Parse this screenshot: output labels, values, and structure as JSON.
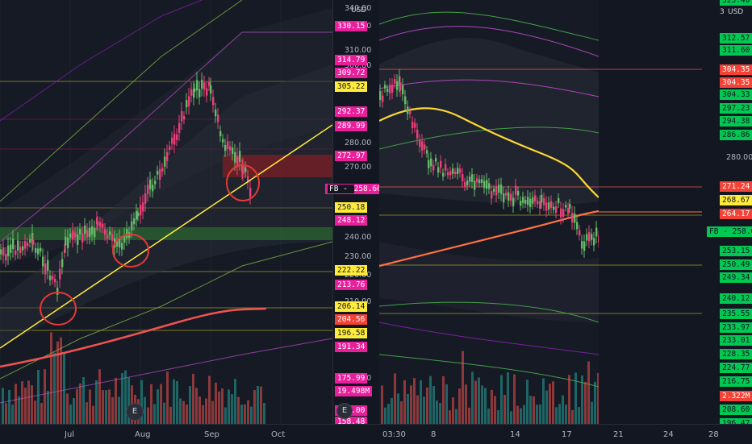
{
  "colors": {
    "background": "#131722",
    "yellow_line": "#ffeb3b",
    "red_circle": "#e53935",
    "magenta_tag": "#e91e9b",
    "yellow_tag": "#ffeb3b",
    "red_tag": "#f44336",
    "green_tag": "#00c853",
    "green_zone": "#2e7d32",
    "red_zone": "#b71c1c"
  },
  "left_chart": {
    "currency": "USD",
    "price_ticks": [
      "340.00",
      "320.00",
      "310.00",
      "300.00",
      "280.00",
      "270.00",
      "240.00",
      "230.00",
      "220.00",
      "210.00",
      "180.00"
    ],
    "tags": [
      {
        "label": "330.15",
        "kind": "magenta"
      },
      {
        "label": "314.79",
        "kind": "magenta"
      },
      {
        "label": "309.72",
        "kind": "magenta"
      },
      {
        "label": "305.22",
        "kind": "yellow"
      },
      {
        "label": "292.37",
        "kind": "magenta"
      },
      {
        "label": "289.99",
        "kind": "magenta"
      },
      {
        "label": "272.97",
        "kind": "magenta"
      },
      {
        "label": "258.60",
        "kind": "magenta",
        "symbol": "FB"
      },
      {
        "label": "250.18",
        "kind": "yellow"
      },
      {
        "label": "248.12",
        "kind": "magenta"
      },
      {
        "label": "222.22",
        "kind": "yellow"
      },
      {
        "label": "213.76",
        "kind": "magenta"
      },
      {
        "label": "206.14",
        "kind": "yellow"
      },
      {
        "label": "204.56",
        "kind": "red"
      },
      {
        "label": "196.58",
        "kind": "yellow"
      },
      {
        "label": "191.34",
        "kind": "magenta"
      },
      {
        "label": "175.99",
        "kind": "magenta"
      },
      {
        "label": "19.498M",
        "kind": "magenta"
      },
      {
        "label": "161.00",
        "kind": "magenta"
      },
      {
        "label": "158.48",
        "kind": "magenta"
      }
    ],
    "time_labels": [
      "Jul",
      "Aug",
      "Sep",
      "Oct"
    ],
    "events_button": "E"
  },
  "right_chart": {
    "currency": "USD",
    "price_ticks": [
      "280.00"
    ],
    "tags": [
      {
        "label": "323.40",
        "kind": "green"
      },
      {
        "label": "312.57",
        "kind": "green"
      },
      {
        "label": "311.60",
        "kind": "green"
      },
      {
        "label": "304.35",
        "kind": "red"
      },
      {
        "label": "304.35",
        "kind": "red"
      },
      {
        "label": "304.33",
        "kind": "green"
      },
      {
        "label": "297.23",
        "kind": "green"
      },
      {
        "label": "294.38",
        "kind": "green"
      },
      {
        "label": "286.86",
        "kind": "green"
      },
      {
        "label": "271.24",
        "kind": "red"
      },
      {
        "label": "268.67",
        "kind": "yellow"
      },
      {
        "label": "264.17",
        "kind": "red"
      },
      {
        "label": "258.60",
        "kind": "green",
        "symbol": "FB"
      },
      {
        "label": "253.15",
        "kind": "green"
      },
      {
        "label": "250.49",
        "kind": "green"
      },
      {
        "label": "249.34",
        "kind": "green"
      },
      {
        "label": "240.12",
        "kind": "green"
      },
      {
        "label": "235.55",
        "kind": "green"
      },
      {
        "label": "233.97",
        "kind": "green"
      },
      {
        "label": "233.01",
        "kind": "green"
      },
      {
        "label": "228.35",
        "kind": "green"
      },
      {
        "label": "224.77",
        "kind": "green"
      },
      {
        "label": "216.75",
        "kind": "green"
      },
      {
        "label": "2.322M",
        "kind": "red"
      },
      {
        "label": "208.60",
        "kind": "green"
      },
      {
        "label": "196.47",
        "kind": "green"
      }
    ],
    "time_labels": [
      "03:30",
      "8",
      "14",
      "17",
      "21",
      "24",
      "28"
    ],
    "top_right_digit": "3"
  }
}
